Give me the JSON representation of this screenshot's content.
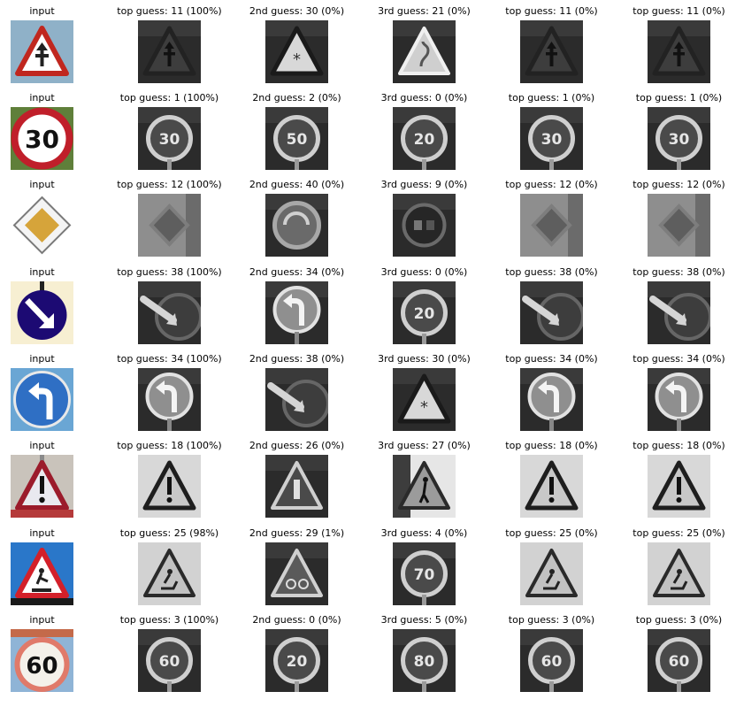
{
  "rows": [
    {
      "input_label": "input",
      "input_sign": "priority-road-intersection",
      "input_bg": "#8fb1c8",
      "guesses": [
        {
          "label": "top guess: 11 (100%)",
          "glyph": "right-of-way-triangle"
        },
        {
          "label": "2nd guess: 30 (0%)",
          "glyph": "snow-triangle"
        },
        {
          "label": "3rd guess: 21 (0%)",
          "glyph": "double-curve-triangle"
        },
        {
          "label": "top guess: 11 (0%)",
          "glyph": "right-of-way-triangle"
        },
        {
          "label": "top guess: 11 (0%)",
          "glyph": "right-of-way-triangle"
        }
      ]
    },
    {
      "input_label": "input",
      "input_sign": "speed-limit-30",
      "input_text": "30",
      "input_bg": "#5f7f3a",
      "guesses": [
        {
          "label": "top guess: 1 (100%)",
          "glyph": "speed-circle",
          "text": "30"
        },
        {
          "label": "2nd guess: 2 (0%)",
          "glyph": "speed-circle",
          "text": "50"
        },
        {
          "label": "3rd guess: 0 (0%)",
          "glyph": "speed-circle",
          "text": "20"
        },
        {
          "label": "top guess: 1 (0%)",
          "glyph": "speed-circle",
          "text": "30"
        },
        {
          "label": "top guess: 1 (0%)",
          "glyph": "speed-circle",
          "text": "30"
        }
      ]
    },
    {
      "input_label": "input",
      "input_sign": "priority-road",
      "input_bg": "#ffffff",
      "guesses": [
        {
          "label": "top guess: 12 (100%)",
          "glyph": "diamond"
        },
        {
          "label": "2nd guess: 40 (0%)",
          "glyph": "roundabout-circle"
        },
        {
          "label": "3rd guess: 9 (0%)",
          "glyph": "no-passing-circle"
        },
        {
          "label": "top guess: 12 (0%)",
          "glyph": "diamond"
        },
        {
          "label": "top guess: 12 (0%)",
          "glyph": "diamond"
        }
      ]
    },
    {
      "input_label": "input",
      "input_sign": "keep-right",
      "input_bg": "#f7efd2",
      "guesses": [
        {
          "label": "top guess: 38 (100%)",
          "glyph": "keep-right-circle"
        },
        {
          "label": "2nd guess: 34 (0%)",
          "glyph": "turn-left-circle"
        },
        {
          "label": "3rd guess: 0 (0%)",
          "glyph": "speed-circle",
          "text": "20"
        },
        {
          "label": "top guess: 38 (0%)",
          "glyph": "keep-right-circle"
        },
        {
          "label": "top guess: 38 (0%)",
          "glyph": "keep-right-circle"
        }
      ]
    },
    {
      "input_label": "input",
      "input_sign": "turn-left-ahead",
      "input_bg": "#6aa6d4",
      "guesses": [
        {
          "label": "top guess: 34 (100%)",
          "glyph": "turn-left-circle"
        },
        {
          "label": "2nd guess: 38 (0%)",
          "glyph": "keep-right-circle"
        },
        {
          "label": "3rd guess: 30 (0%)",
          "glyph": "snow-triangle"
        },
        {
          "label": "top guess: 34 (0%)",
          "glyph": "turn-left-circle"
        },
        {
          "label": "top guess: 34 (0%)",
          "glyph": "turn-left-circle"
        }
      ]
    },
    {
      "input_label": "input",
      "input_sign": "general-caution",
      "input_bg": "#c9c3bb",
      "guesses": [
        {
          "label": "top guess: 18 (100%)",
          "glyph": "exclamation-triangle"
        },
        {
          "label": "2nd guess: 26 (0%)",
          "glyph": "signals-triangle"
        },
        {
          "label": "3rd guess: 27 (0%)",
          "glyph": "pedestrian-triangle"
        },
        {
          "label": "top guess: 18 (0%)",
          "glyph": "exclamation-triangle"
        },
        {
          "label": "top guess: 18 (0%)",
          "glyph": "exclamation-triangle"
        }
      ]
    },
    {
      "input_label": "input",
      "input_sign": "road-work",
      "input_bg": "#2a77c9",
      "guesses": [
        {
          "label": "top guess: 25 (98%)",
          "glyph": "roadwork-triangle"
        },
        {
          "label": "2nd guess: 29 (1%)",
          "glyph": "bicycle-triangle"
        },
        {
          "label": "3rd guess: 4 (0%)",
          "glyph": "speed-circle",
          "text": "70"
        },
        {
          "label": "top guess: 25 (0%)",
          "glyph": "roadwork-triangle"
        },
        {
          "label": "top guess: 25 (0%)",
          "glyph": "roadwork-triangle"
        }
      ]
    },
    {
      "input_label": "input",
      "input_sign": "speed-limit-60",
      "input_text": "60",
      "input_bg": "#8fb4d6",
      "guesses": [
        {
          "label": "top guess: 3 (100%)",
          "glyph": "speed-circle",
          "text": "60"
        },
        {
          "label": "2nd guess: 0 (0%)",
          "glyph": "speed-circle",
          "text": "20"
        },
        {
          "label": "3rd guess: 5 (0%)",
          "glyph": "speed-circle",
          "text": "80"
        },
        {
          "label": "top guess: 3 (0%)",
          "glyph": "speed-circle",
          "text": "60"
        },
        {
          "label": "top guess: 3 (0%)",
          "glyph": "speed-circle",
          "text": "60"
        }
      ]
    }
  ]
}
